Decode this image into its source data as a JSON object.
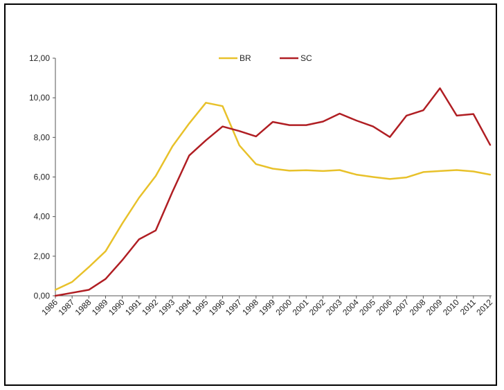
{
  "chart_data": {
    "type": "line",
    "x": [
      "1986",
      "1987",
      "1988",
      "1989",
      "1990",
      "1991",
      "1992",
      "1993",
      "1994",
      "1995",
      "1996",
      "1997",
      "1998",
      "1999",
      "2000",
      "2001",
      "2002",
      "2003",
      "2004",
      "2005",
      "2006",
      "2007",
      "2008",
      "2009",
      "2010",
      "2011",
      "2012"
    ],
    "series": [
      {
        "name": "BR",
        "color": "#e8c12a",
        "values": [
          0.3,
          0.7,
          1.45,
          2.25,
          3.65,
          4.95,
          6.05,
          7.55,
          8.7,
          9.75,
          9.58,
          7.6,
          6.65,
          6.42,
          6.32,
          6.34,
          6.3,
          6.35,
          6.12,
          6.0,
          5.9,
          5.98,
          6.25,
          6.3,
          6.35,
          6.28,
          6.12
        ]
      },
      {
        "name": "SC",
        "color": "#b01e23",
        "values": [
          0.0,
          0.15,
          0.3,
          0.85,
          1.8,
          2.85,
          3.3,
          5.25,
          7.08,
          7.85,
          8.55,
          8.32,
          8.05,
          8.78,
          8.62,
          8.62,
          8.8,
          9.2,
          8.85,
          8.55,
          8.02,
          9.1,
          9.37,
          10.48,
          9.1,
          9.18,
          7.62
        ]
      }
    ],
    "yticks": [
      "0,00",
      "2,00",
      "4,00",
      "6,00",
      "8,00",
      "10,00",
      "12,00"
    ],
    "ylim": [
      0,
      12
    ],
    "grid": false,
    "legend": "top-center"
  }
}
